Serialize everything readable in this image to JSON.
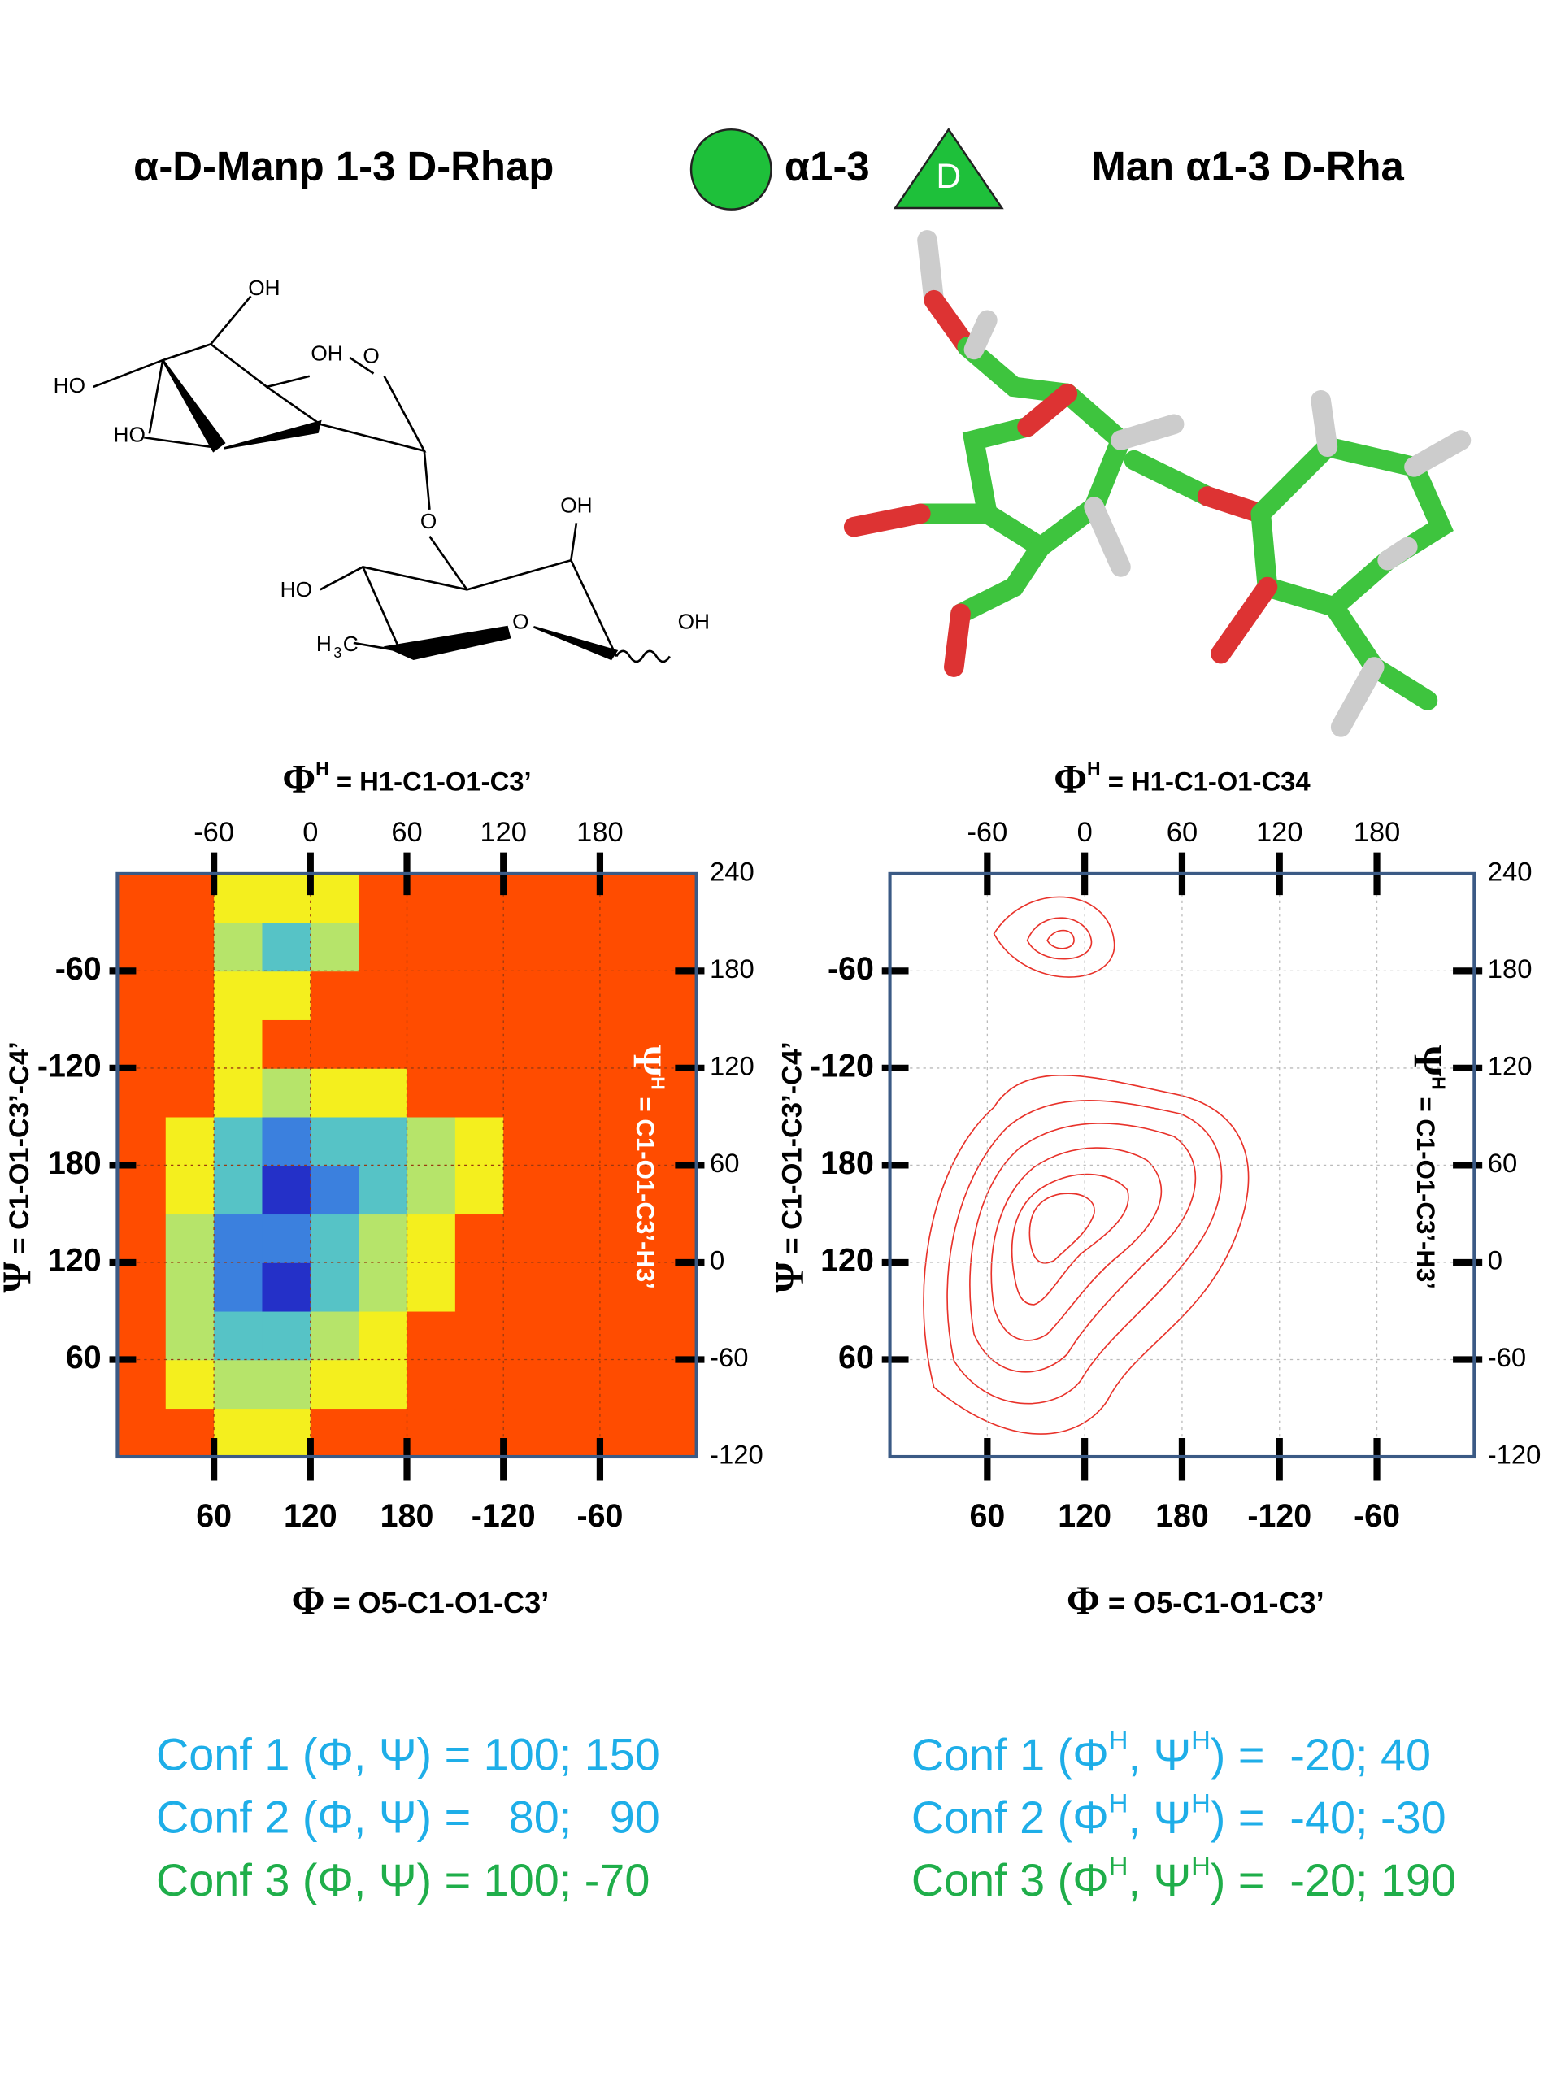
{
  "header": {
    "left_title": "α-D-Manp 1-3 D-Rhap",
    "linkage": "α1-3",
    "rha_symbol": "D",
    "right_title": "Man α1-3 D-Rha"
  },
  "structure": {
    "labels": [
      "OH",
      "HO",
      "OH",
      "O",
      "HO",
      "O",
      "OH",
      "HO",
      "O",
      "OH",
      "H",
      "3",
      "C"
    ]
  },
  "chart_data": [
    {
      "type": "heatmap",
      "top_title": {
        "symbol": "Φ",
        "sup": "H",
        "text": " = H1-C1-O1-C3’"
      },
      "bottom_title": {
        "symbol": "Φ",
        "text": " = O5-C1-O1-C3’"
      },
      "left_title": {
        "symbol": "Ψ",
        "text": " = C1-O1-C3’-C4’"
      },
      "right_title": {
        "symbol": "Ψ",
        "sup": "H",
        "text": " = C1-O1-C3’-H3’"
      },
      "xlim": [
        0,
        360
      ],
      "xticks": [
        60,
        120,
        180,
        {
          "value": 240,
          "label": "-120"
        },
        {
          "value": 300,
          "label": "-60"
        }
      ],
      "x2lim": [
        -120,
        240
      ],
      "x2ticks": [
        -60,
        0,
        60,
        120,
        180
      ],
      "ylim": [
        0,
        360
      ],
      "yticks": [
        60,
        120,
        180,
        {
          "value": 240,
          "label": "-120"
        },
        {
          "value": 300,
          "label": "-60"
        }
      ],
      "y2lim": [
        -120,
        240
      ],
      "y2ticks": [
        -120,
        -60,
        0,
        60,
        120,
        180,
        240
      ],
      "grid": true,
      "x_bins": [
        0,
        30,
        60,
        90,
        120,
        150,
        180,
        210,
        240,
        270,
        300,
        330,
        360
      ],
      "y_bins": [
        0,
        30,
        60,
        90,
        120,
        150,
        180,
        210,
        240,
        270,
        300,
        330,
        360
      ],
      "colors": [
        "#2430c8",
        "#3b80de",
        "#56c3c6",
        "#b6e46a",
        "#f4ef1e",
        "#ff4c00"
      ],
      "z": [
        [
          5,
          5,
          4,
          4,
          5,
          5,
          5,
          5,
          5,
          5,
          5,
          5
        ],
        [
          5,
          4,
          3,
          3,
          4,
          4,
          5,
          5,
          5,
          5,
          5,
          5
        ],
        [
          5,
          3,
          2,
          2,
          3,
          4,
          5,
          5,
          5,
          5,
          5,
          5
        ],
        [
          5,
          3,
          1,
          0,
          2,
          3,
          4,
          5,
          5,
          5,
          5,
          5
        ],
        [
          5,
          3,
          1,
          1,
          2,
          3,
          4,
          5,
          5,
          5,
          5,
          5
        ],
        [
          5,
          4,
          2,
          0,
          1,
          2,
          3,
          4,
          5,
          5,
          5,
          5
        ],
        [
          5,
          4,
          2,
          1,
          2,
          2,
          3,
          4,
          5,
          5,
          5,
          5
        ],
        [
          5,
          5,
          4,
          3,
          4,
          4,
          5,
          5,
          5,
          5,
          5,
          5
        ],
        [
          5,
          5,
          4,
          5,
          5,
          5,
          5,
          5,
          5,
          5,
          5,
          5
        ],
        [
          5,
          5,
          4,
          4,
          5,
          5,
          5,
          5,
          5,
          5,
          5,
          5
        ],
        [
          5,
          5,
          3,
          2,
          3,
          5,
          5,
          5,
          5,
          5,
          5,
          5
        ],
        [
          5,
          5,
          4,
          4,
          4,
          5,
          5,
          5,
          5,
          5,
          5,
          5
        ]
      ]
    },
    {
      "type": "contour",
      "color": "#e8322a",
      "top_title": {
        "symbol": "Φ",
        "sup": "H",
        "text": " = H1-C1-O1-C34"
      },
      "bottom_title": {
        "symbol": "Φ",
        "text": " = O5-C1-O1-C3’"
      },
      "left_title": {
        "symbol": "Ψ",
        "text": " = C1-O1-C3’-C4’"
      },
      "right_title": {
        "symbol": "Ψ",
        "sup": "H",
        "text": " = C1-O1-C3’-H3’"
      },
      "xlim": [
        0,
        360
      ],
      "xticks": [
        60,
        120,
        180,
        {
          "value": 240,
          "label": "-120"
        },
        {
          "value": 300,
          "label": "-60"
        }
      ],
      "x2lim": [
        -120,
        240
      ],
      "x2ticks": [
        -60,
        0,
        60,
        120,
        180
      ],
      "ylim": [
        0,
        360
      ],
      "yticks": [
        60,
        120,
        180,
        {
          "value": 240,
          "label": "-120"
        },
        {
          "value": 300,
          "label": "-60"
        }
      ],
      "y2lim": [
        -120,
        240
      ],
      "y2ticks": [
        -120,
        -60,
        0,
        60,
        120,
        180,
        240
      ],
      "grid": true
    }
  ],
  "conformations": {
    "left": [
      {
        "text": "Conf 1 (Φ, Ψ) = 100; 150",
        "color": "#1eaee8"
      },
      {
        "text": "Conf 2 (Φ, Ψ) =   80;   90",
        "color": "#1eaee8"
      },
      {
        "text": "Conf 3 (Φ, Ψ) = 100; -70",
        "color": "#1fae4a"
      }
    ],
    "right": [
      {
        "parts": [
          "Conf 1 (Φ",
          "H",
          ", Ψ",
          "H",
          ") =  -20; 40"
        ],
        "color": "#1eaee8"
      },
      {
        "parts": [
          "Conf 2 (Φ",
          "H",
          ", Ψ",
          "H",
          ") =  -40; -30"
        ],
        "color": "#1eaee8"
      },
      {
        "parts": [
          "Conf 3 (Φ",
          "H",
          ", Ψ",
          "H",
          ") =  -20; 190"
        ],
        "color": "#1fae4a"
      }
    ]
  }
}
